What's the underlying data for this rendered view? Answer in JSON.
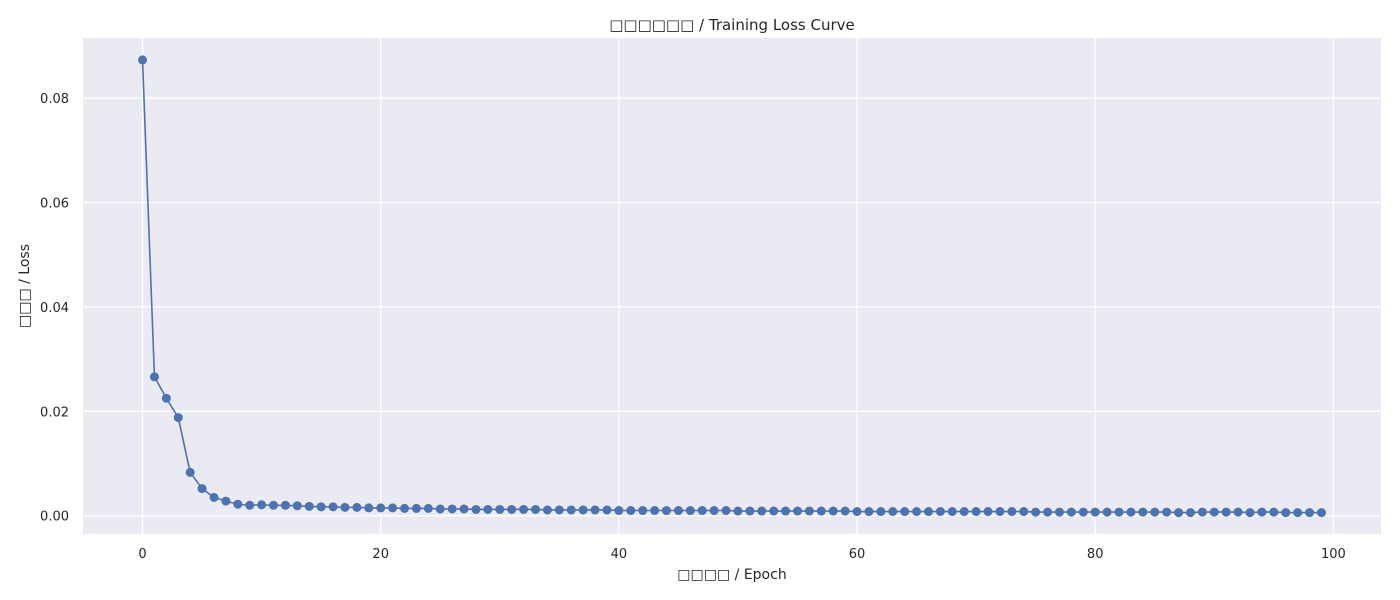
{
  "colors": {
    "plot_background": "#eaeaf2",
    "series": "#4c72b0",
    "grid": "#ffffff",
    "text": "#262626"
  },
  "chart_data": {
    "type": "line",
    "title": "□□□□□□ / Training Loss Curve",
    "xlabel": "□□□□ / Epoch",
    "ylabel": "□□□ / Loss",
    "xlim": [
      -5,
      104
    ],
    "ylim": [
      -0.0035,
      0.0915
    ],
    "xticks": [
      0,
      20,
      40,
      60,
      80,
      100
    ],
    "xtick_labels": [
      "0",
      "20",
      "40",
      "60",
      "80",
      "100"
    ],
    "yticks": [
      0.0,
      0.02,
      0.04,
      0.06,
      0.08
    ],
    "ytick_labels": [
      "0.00",
      "0.02",
      "0.04",
      "0.06",
      "0.08"
    ],
    "grid": true,
    "markers": true,
    "series": [
      {
        "x": [
          0,
          1,
          2,
          3,
          4,
          5,
          6,
          7,
          8,
          9,
          10,
          11,
          12,
          13,
          14,
          15,
          16,
          17,
          18,
          19,
          20,
          21,
          22,
          23,
          24,
          25,
          26,
          27,
          28,
          29,
          30,
          31,
          32,
          33,
          34,
          35,
          36,
          37,
          38,
          39,
          40,
          41,
          42,
          43,
          44,
          45,
          46,
          47,
          48,
          49,
          50,
          51,
          52,
          53,
          54,
          55,
          56,
          57,
          58,
          59,
          60,
          61,
          62,
          63,
          64,
          65,
          66,
          67,
          68,
          69,
          70,
          71,
          72,
          73,
          74,
          75,
          76,
          77,
          78,
          79,
          80,
          81,
          82,
          83,
          84,
          85,
          86,
          87,
          88,
          89,
          90,
          91,
          92,
          93,
          94,
          95,
          96,
          97,
          98,
          99
        ],
        "values": [
          0.0873,
          0.0266,
          0.0225,
          0.0188,
          0.0083,
          0.0052,
          0.0035,
          0.0028,
          0.0022,
          0.002,
          0.0021,
          0.002,
          0.002,
          0.0019,
          0.0018,
          0.0017,
          0.0017,
          0.0016,
          0.0016,
          0.0015,
          0.0015,
          0.0015,
          0.0014,
          0.0014,
          0.0014,
          0.0013,
          0.0013,
          0.0013,
          0.0012,
          0.0012,
          0.0012,
          0.0012,
          0.0012,
          0.0012,
          0.0011,
          0.0011,
          0.0011,
          0.0011,
          0.0011,
          0.0011,
          0.001,
          0.001,
          0.001,
          0.001,
          0.001,
          0.001,
          0.001,
          0.001,
          0.001,
          0.001,
          0.0009,
          0.0009,
          0.0009,
          0.0009,
          0.0009,
          0.0009,
          0.0009,
          0.0009,
          0.0009,
          0.0009,
          0.0008,
          0.0008,
          0.0008,
          0.0008,
          0.0008,
          0.0008,
          0.0008,
          0.0008,
          0.0008,
          0.0008,
          0.0008,
          0.0008,
          0.0008,
          0.0008,
          0.0008,
          0.0007,
          0.0007,
          0.0007,
          0.0007,
          0.0007,
          0.0007,
          0.0007,
          0.0007,
          0.0007,
          0.0007,
          0.0007,
          0.0007,
          0.0006,
          0.0006,
          0.0007,
          0.0007,
          0.0007,
          0.0007,
          0.0006,
          0.0007,
          0.0007,
          0.0006,
          0.0006,
          0.0006,
          0.0006
        ]
      }
    ]
  }
}
